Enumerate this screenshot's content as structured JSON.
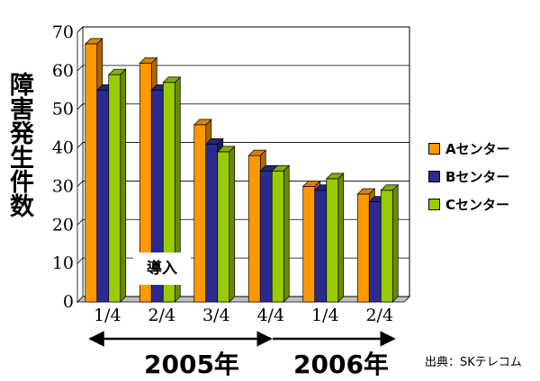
{
  "chart_data": {
    "type": "bar",
    "title": "",
    "ylabel": "障害発生件数",
    "xlabel": "",
    "ylim": [
      0,
      70
    ],
    "yticks": [
      0,
      10,
      20,
      30,
      40,
      50,
      60,
      70
    ],
    "grid": true,
    "style": "3d-bars",
    "legend_position": "right",
    "categories": [
      "1/4",
      "2/4",
      "3/4",
      "4/4",
      "1/4",
      "2/4"
    ],
    "series": [
      {
        "name": "Aセンター",
        "color": "#ff9900",
        "values": [
          67,
          62,
          46,
          38,
          30,
          28
        ]
      },
      {
        "name": "Bセンター",
        "color": "#2b2b8f",
        "values": [
          55,
          55,
          41,
          34,
          29,
          26
        ]
      },
      {
        "name": "Cセンター",
        "color": "#99cc00",
        "values": [
          59,
          57,
          39,
          34,
          32,
          29
        ]
      }
    ],
    "annotation": "導入",
    "periods": [
      {
        "label": "2005年",
        "from": "1/4",
        "to": "4/4"
      },
      {
        "label": "2006年",
        "from": "1/4",
        "to": "2/4"
      }
    ],
    "source": "出典：SKテレコム"
  }
}
